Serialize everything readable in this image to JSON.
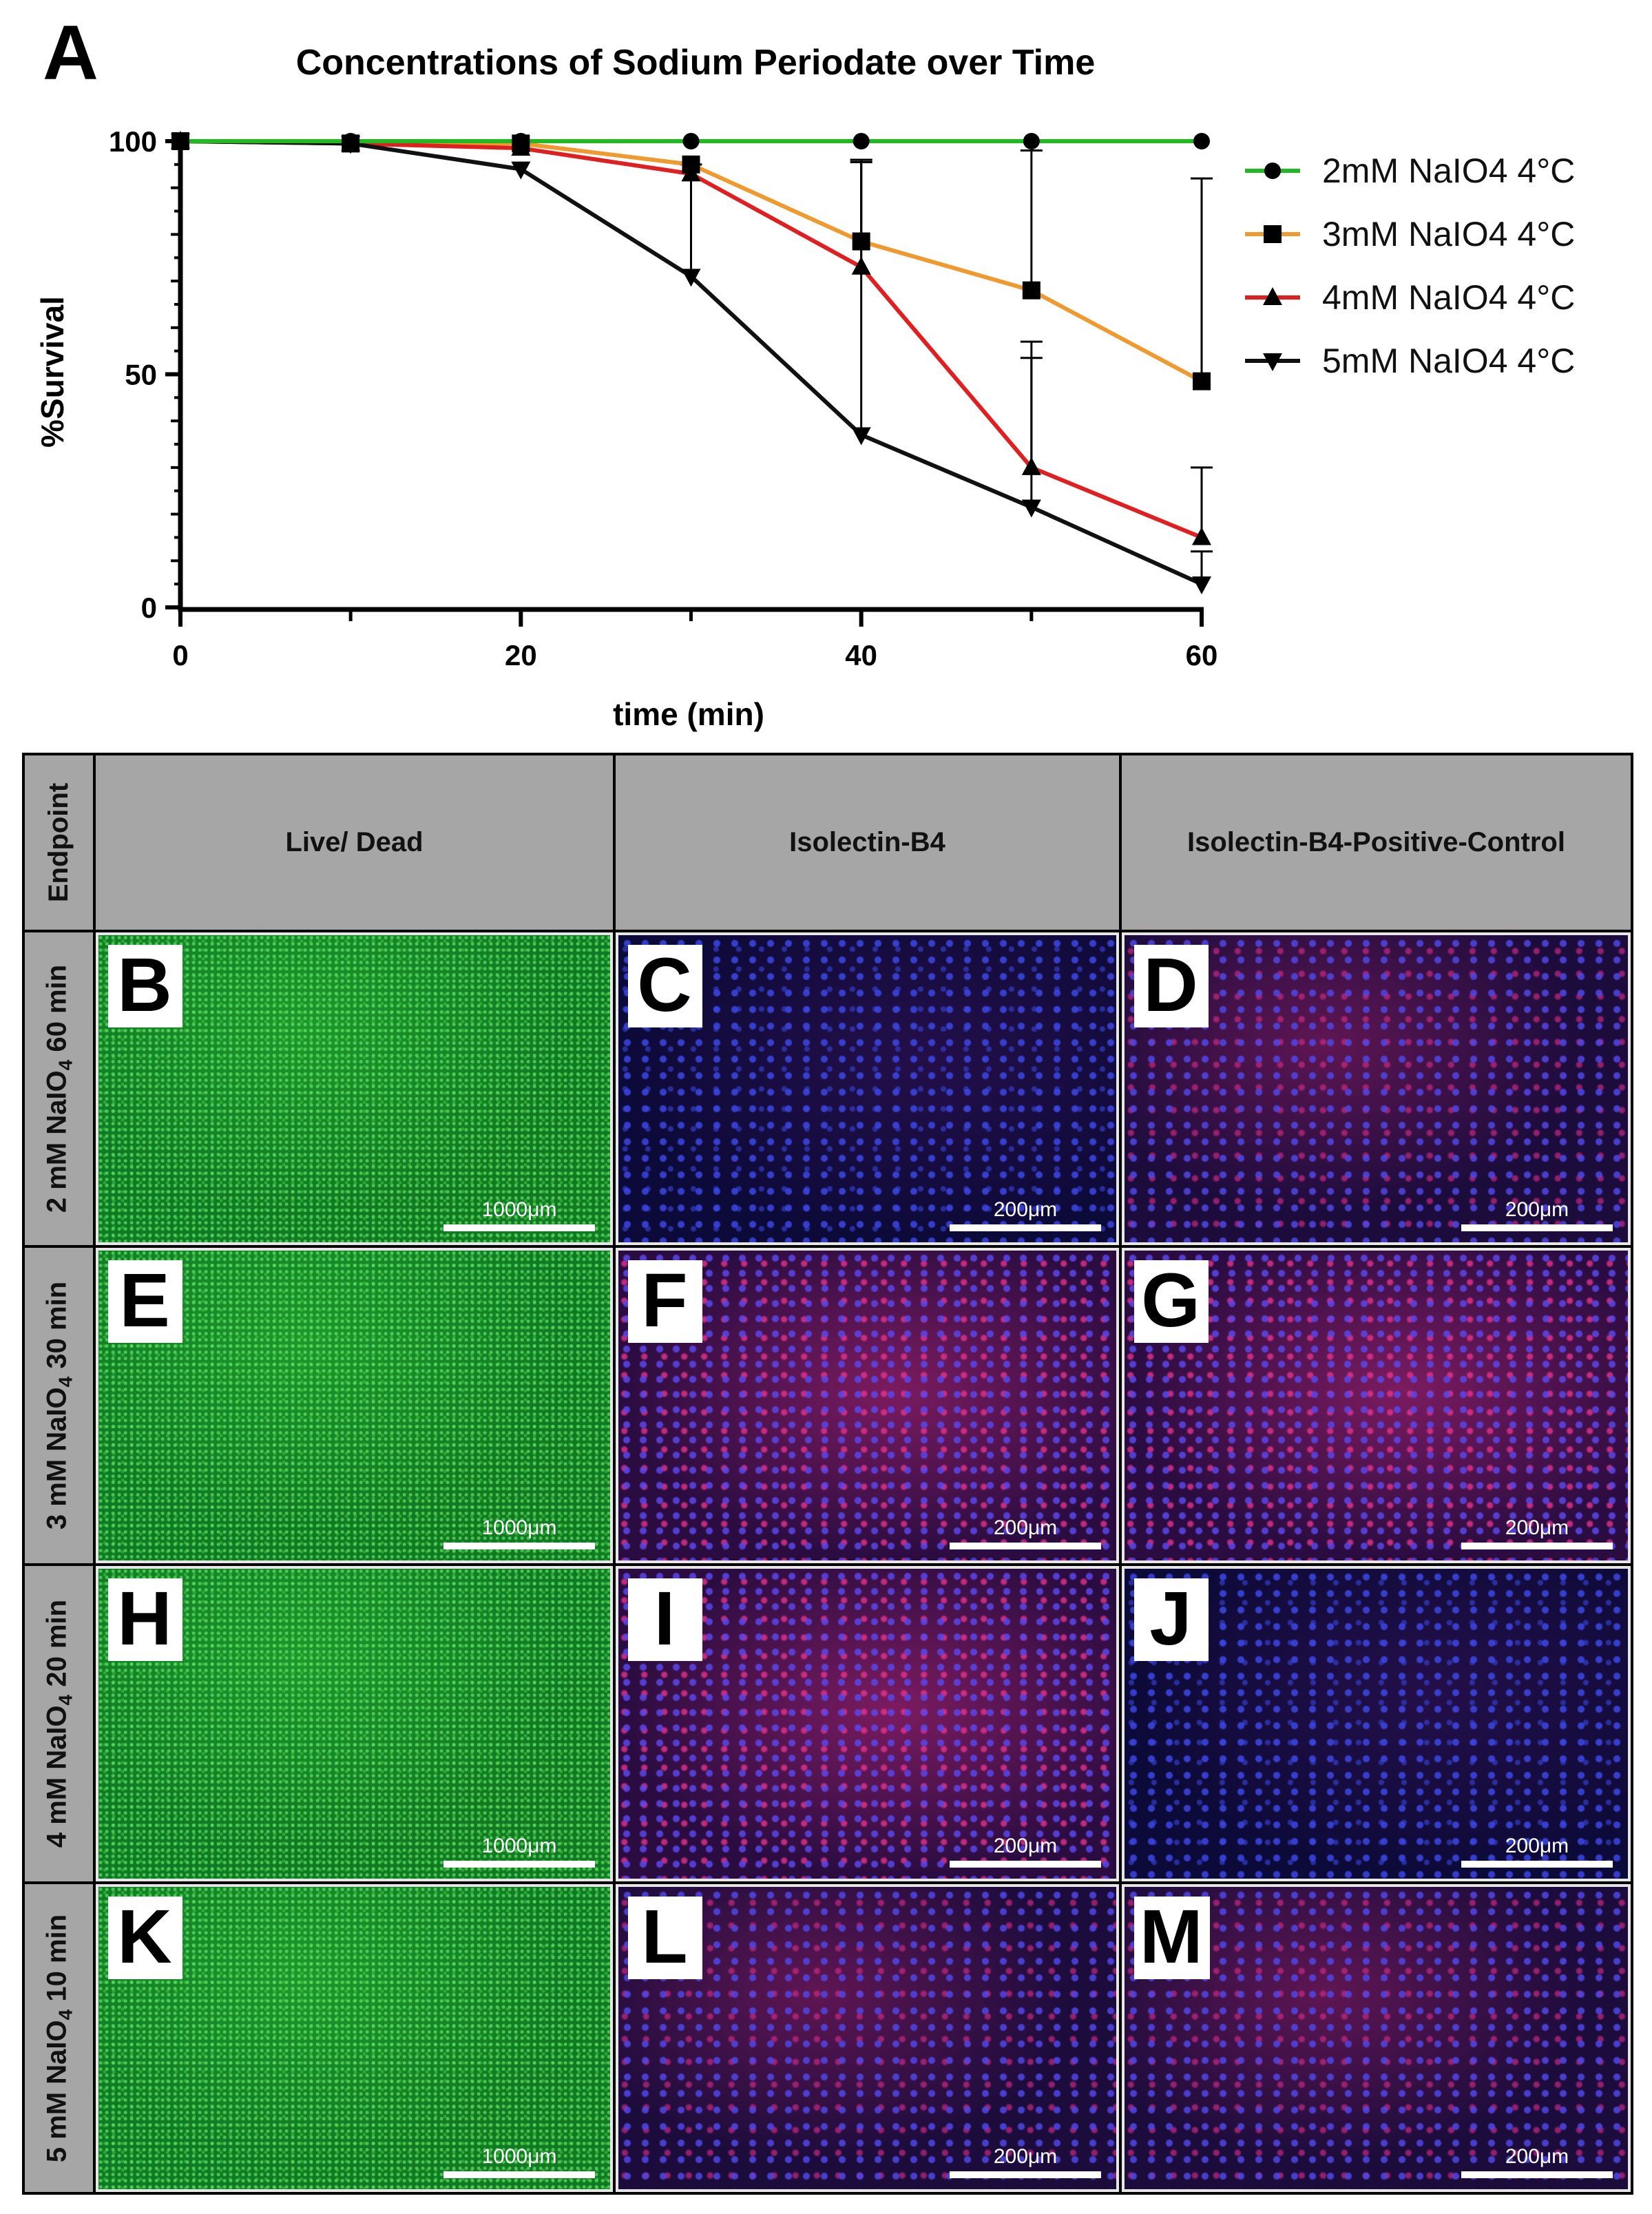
{
  "figure_label": "A",
  "chart_data": {
    "type": "line",
    "title": "Concentrations of Sodium Periodate over Time",
    "xlabel": "time (min)",
    "ylabel": "%Survival",
    "xlim": [
      0,
      60
    ],
    "ylim": [
      0,
      100
    ],
    "xticks": [
      0,
      20,
      40,
      60
    ],
    "yticks": [
      0,
      50,
      100
    ],
    "x": [
      0,
      10,
      20,
      30,
      40,
      50,
      60
    ],
    "legend_position": "right",
    "grid": false,
    "series": [
      {
        "name": "2mM NaIO4 4°C",
        "color": "#22b822",
        "marker": "circle",
        "values": [
          100,
          100,
          100,
          100,
          100,
          100,
          100
        ],
        "error_plus": [
          0,
          0,
          0,
          0,
          0,
          0,
          0
        ]
      },
      {
        "name": "3mM NaIO4 4°C",
        "color": "#f0992f",
        "marker": "square",
        "values": [
          100,
          99.5,
          99.5,
          95,
          78.5,
          68,
          48.5
        ],
        "error_plus": [
          0,
          0,
          0,
          0,
          17,
          30,
          43.5
        ]
      },
      {
        "name": "4mM NaIO4 4°C",
        "color": "#e02020",
        "marker": "triangle-up",
        "values": [
          100,
          99.5,
          98.5,
          93,
          73,
          30,
          15
        ],
        "error_plus": [
          0,
          0,
          0,
          0,
          23,
          27,
          15
        ]
      },
      {
        "name": "5mM NaIO4 4°C",
        "color": "#111111",
        "marker": "triangle-down",
        "values": [
          100,
          99.5,
          94,
          71,
          37,
          21.5,
          5
        ],
        "error_plus": [
          0,
          0,
          0,
          24,
          59,
          32,
          7
        ]
      }
    ]
  },
  "grid": {
    "corner": "Endpoint",
    "columns": [
      "Live/ Dead",
      "Isolectin-B4",
      "Isolectin-B4-Positive-Control"
    ],
    "rows": [
      {
        "conc": "2 mM NaIO",
        "sub": "4",
        "time": " 60 min",
        "panels": [
          {
            "label": "B",
            "scale": "1000μm"
          },
          {
            "label": "C",
            "scale": "200μm"
          },
          {
            "label": "D",
            "scale": "200μm"
          }
        ]
      },
      {
        "conc": "3 mM NaIO",
        "sub": "4",
        "time": " 30 min",
        "panels": [
          {
            "label": "E",
            "scale": "1000μm"
          },
          {
            "label": "F",
            "scale": "200μm"
          },
          {
            "label": "G",
            "scale": "200μm"
          }
        ]
      },
      {
        "conc": "4 mM NaIO",
        "sub": "4",
        "time": " 20 min",
        "panels": [
          {
            "label": "H",
            "scale": "1000μm"
          },
          {
            "label": "I",
            "scale": "200μm"
          },
          {
            "label": "J",
            "scale": "200μm"
          }
        ]
      },
      {
        "conc": "5 mM NaIO",
        "sub": "4",
        "time": " 10 min",
        "panels": [
          {
            "label": "K",
            "scale": "1000μm"
          },
          {
            "label": "L",
            "scale": "200μm"
          },
          {
            "label": "M",
            "scale": "200μm"
          }
        ]
      }
    ]
  }
}
